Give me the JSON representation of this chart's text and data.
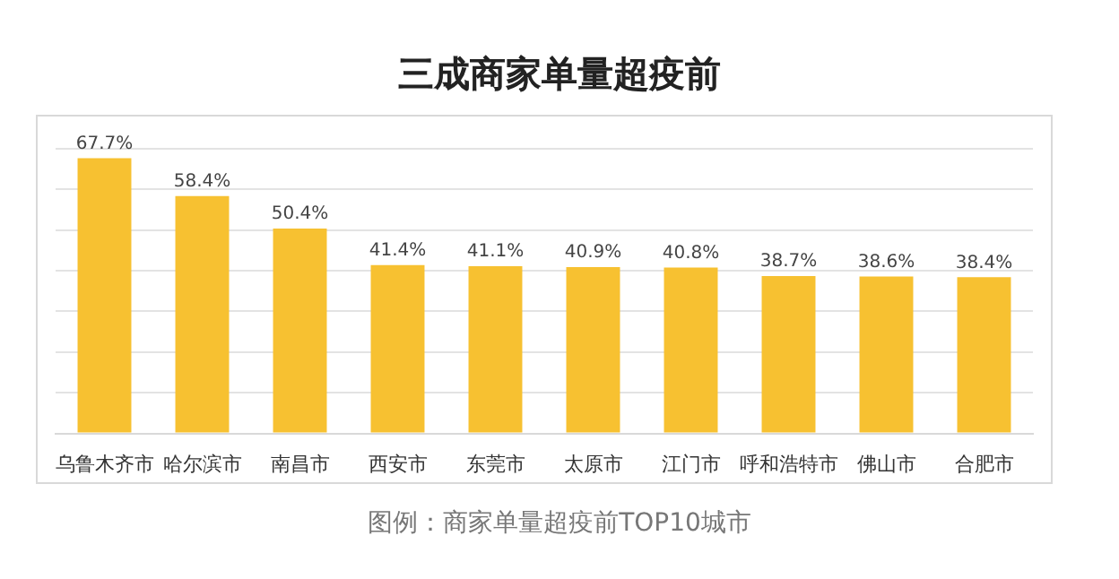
{
  "chart_data": {
    "type": "bar",
    "title": "三成商家单量超疫前",
    "categories": [
      "乌鲁木齐市",
      "哈尔滨市",
      "南昌市",
      "西安市",
      "东莞市",
      "太原市",
      "江门市",
      "呼和浩特市",
      "佛山市",
      "合肥市"
    ],
    "values": [
      67.7,
      58.4,
      50.4,
      41.4,
      41.1,
      40.9,
      40.8,
      38.7,
      38.6,
      38.4
    ],
    "value_labels": [
      "67.7%",
      "58.4%",
      "50.4%",
      "41.4%",
      "41.1%",
      "40.9%",
      "40.8%",
      "38.7%",
      "38.6%",
      "38.4%"
    ],
    "color": "#f7c131",
    "ylim": [
      0,
      70
    ],
    "yticks": [
      0,
      10,
      20,
      30,
      40,
      50,
      60,
      70
    ],
    "grid": "y",
    "tick_labels": "x",
    "legend": false,
    "annotations": [
      "图例：商家单量超疫前TOP10城市"
    ]
  }
}
